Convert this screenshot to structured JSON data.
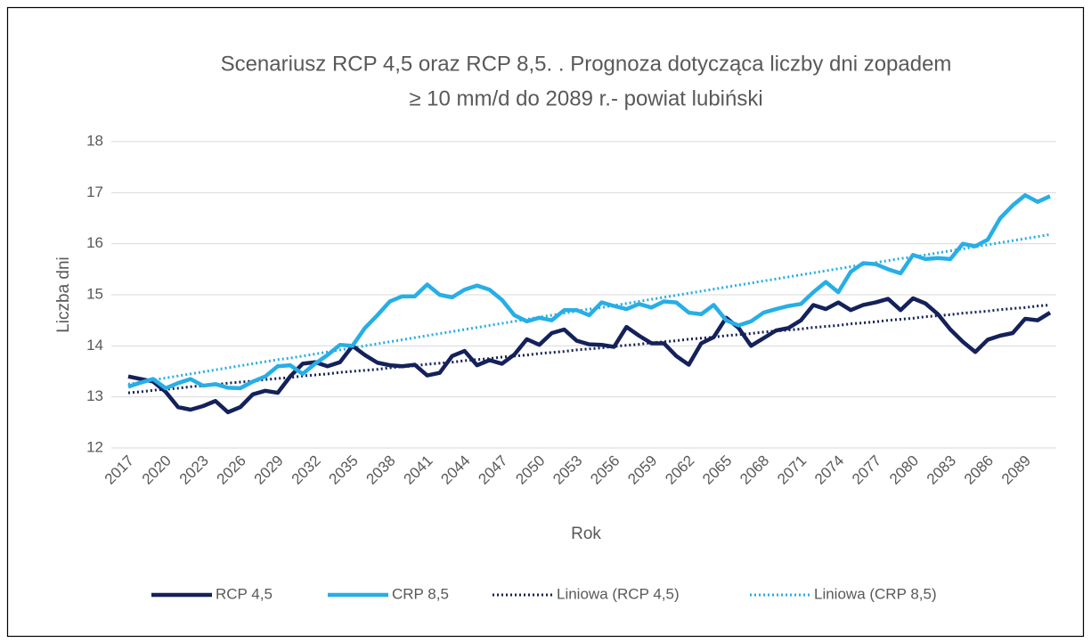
{
  "chart_data": {
    "type": "line",
    "title": [
      "Scenariusz RCP 4,5 oraz RCP 8,5. . Prognoza dotycząca liczby dni zopadem",
      "≥ 10 mm/d do 2089 r.- powiat lubiński"
    ],
    "x_label": "Rok",
    "y_label": "Liczba dni",
    "categories": [
      2017,
      null,
      null,
      2020,
      null,
      null,
      2023,
      null,
      null,
      2026,
      null,
      null,
      2029,
      null,
      null,
      2032,
      null,
      null,
      2035,
      null,
      null,
      2038,
      null,
      null,
      2041,
      null,
      null,
      2044,
      null,
      null,
      2047,
      null,
      null,
      2050,
      null,
      null,
      2053,
      null,
      null,
      2056,
      null,
      null,
      2059,
      null,
      null,
      2062,
      null,
      null,
      2065,
      null,
      null,
      2068,
      null,
      null,
      2071,
      null,
      null,
      2074,
      null,
      null,
      2077,
      null,
      null,
      2080,
      null,
      null,
      2083,
      null,
      null,
      2086,
      null,
      null,
      2089,
      null,
      null
    ],
    "ylim": [
      12,
      18
    ],
    "yticks": [
      12,
      13,
      14,
      15,
      16,
      17,
      18
    ],
    "grid": true,
    "legend": "bottom",
    "series": [
      {
        "name": "RCP 4,5",
        "color": "#14215a",
        "style": "solid",
        "values": [
          13.4,
          13.35,
          13.3,
          13.1,
          12.8,
          12.75,
          12.82,
          12.92,
          12.7,
          12.8,
          13.05,
          13.12,
          13.08,
          13.4,
          13.65,
          13.68,
          13.6,
          13.68,
          14.0,
          13.82,
          13.67,
          13.62,
          13.6,
          13.63,
          13.42,
          13.47,
          13.8,
          13.9,
          13.62,
          13.72,
          13.65,
          13.83,
          14.13,
          14.02,
          14.25,
          14.32,
          14.1,
          14.03,
          14.02,
          13.98,
          14.37,
          14.2,
          14.05,
          14.05,
          13.8,
          13.63,
          14.05,
          14.17,
          14.55,
          14.35,
          14.0,
          14.15,
          14.3,
          14.35,
          14.5,
          14.8,
          14.72,
          14.85,
          14.7,
          14.8,
          14.85,
          14.92,
          14.7,
          14.93,
          14.83,
          14.62,
          14.32,
          14.08,
          13.88,
          14.12,
          14.2,
          14.25,
          14.53,
          14.5,
          14.65
        ]
      },
      {
        "name": "CRP 8,5",
        "color": "#27aee6",
        "style": "solid",
        "values": [
          13.2,
          13.28,
          13.35,
          13.17,
          13.27,
          13.35,
          13.22,
          13.25,
          13.18,
          13.17,
          13.3,
          13.4,
          13.6,
          13.62,
          13.45,
          13.65,
          13.82,
          14.02,
          14.0,
          14.35,
          14.6,
          14.87,
          14.97,
          14.97,
          15.2,
          15.0,
          14.95,
          15.1,
          15.18,
          15.1,
          14.9,
          14.6,
          14.48,
          14.55,
          14.5,
          14.7,
          14.7,
          14.6,
          14.85,
          14.78,
          14.72,
          14.82,
          14.75,
          14.87,
          14.85,
          14.65,
          14.62,
          14.8,
          14.5,
          14.4,
          14.48,
          14.65,
          14.72,
          14.78,
          14.82,
          15.05,
          15.25,
          15.05,
          15.45,
          15.62,
          15.6,
          15.5,
          15.42,
          15.78,
          15.7,
          15.72,
          15.7,
          16.0,
          15.95,
          16.08,
          16.5,
          16.75,
          16.95,
          16.82,
          16.93
        ]
      },
      {
        "name": "Liniowa (RCP 4,5)",
        "color": "#14215a",
        "style": "dotted",
        "values": [
          13.08,
          13.1,
          13.13,
          13.15,
          13.17,
          13.2,
          13.22,
          13.24,
          13.27,
          13.29,
          13.31,
          13.34,
          13.36,
          13.38,
          13.41,
          13.43,
          13.45,
          13.48,
          13.5,
          13.52,
          13.54,
          13.57,
          13.59,
          13.61,
          13.64,
          13.66,
          13.68,
          13.71,
          13.73,
          13.75,
          13.78,
          13.8,
          13.82,
          13.85,
          13.87,
          13.89,
          13.92,
          13.94,
          13.96,
          13.99,
          14.01,
          14.03,
          14.06,
          14.08,
          14.1,
          14.13,
          14.15,
          14.17,
          14.2,
          14.22,
          14.24,
          14.27,
          14.29,
          14.31,
          14.33,
          14.36,
          14.38,
          14.4,
          14.43,
          14.45,
          14.47,
          14.5,
          14.52,
          14.54,
          14.57,
          14.59,
          14.61,
          14.64,
          14.66,
          14.68,
          14.71,
          14.73,
          14.75,
          14.78,
          14.8
        ]
      },
      {
        "name": "Liniowa (CRP 8,5)",
        "color": "#27aee6",
        "style": "dotted",
        "values": [
          13.25,
          13.29,
          13.33,
          13.37,
          13.41,
          13.45,
          13.49,
          13.53,
          13.57,
          13.61,
          13.65,
          13.69,
          13.73,
          13.76,
          13.8,
          13.84,
          13.88,
          13.92,
          13.96,
          14.0,
          14.04,
          14.08,
          14.12,
          14.16,
          14.2,
          14.24,
          14.28,
          14.32,
          14.36,
          14.4,
          14.44,
          14.48,
          14.52,
          14.56,
          14.6,
          14.64,
          14.68,
          14.72,
          14.75,
          14.79,
          14.83,
          14.87,
          14.91,
          14.95,
          14.99,
          15.03,
          15.07,
          15.11,
          15.15,
          15.19,
          15.23,
          15.27,
          15.31,
          15.35,
          15.39,
          15.43,
          15.47,
          15.51,
          15.55,
          15.59,
          15.63,
          15.67,
          15.71,
          15.74,
          15.78,
          15.82,
          15.86,
          15.9,
          15.94,
          15.98,
          16.02,
          16.06,
          16.1,
          16.14,
          16.18
        ]
      }
    ]
  }
}
